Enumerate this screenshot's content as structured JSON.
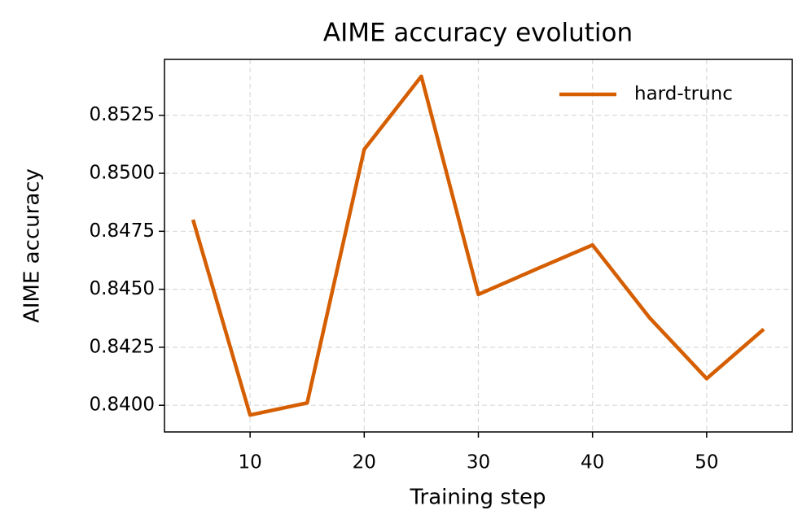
{
  "chart_data": {
    "type": "line",
    "title": "AIME accuracy evolution",
    "x_label": "Training step",
    "y_label": "AIME accuracy",
    "x": [
      5,
      10,
      15,
      20,
      25,
      30,
      35,
      40,
      45,
      50,
      55
    ],
    "series": [
      {
        "name": "hard-trunc",
        "color": "#d55e00",
        "values": [
          0.848,
          0.83958,
          0.8401,
          0.85103,
          0.85418,
          0.84478,
          0.84585,
          0.84691,
          0.84377,
          0.84115,
          0.84328
        ]
      }
    ],
    "xlim": [
      2.5,
      57.5
    ],
    "ylim": [
      0.83885,
      0.85491
    ],
    "xticks": [
      10,
      20,
      30,
      40,
      50
    ],
    "yticks": [
      {
        "value": 0.84,
        "label": "0.8400"
      },
      {
        "value": 0.8425,
        "label": "0.8425"
      },
      {
        "value": 0.845,
        "label": "0.8450"
      },
      {
        "value": 0.8475,
        "label": "0.8475"
      },
      {
        "value": 0.85,
        "label": "0.8500"
      },
      {
        "value": 0.8525,
        "label": "0.8525"
      }
    ],
    "grid": true,
    "legend": "upper right"
  }
}
